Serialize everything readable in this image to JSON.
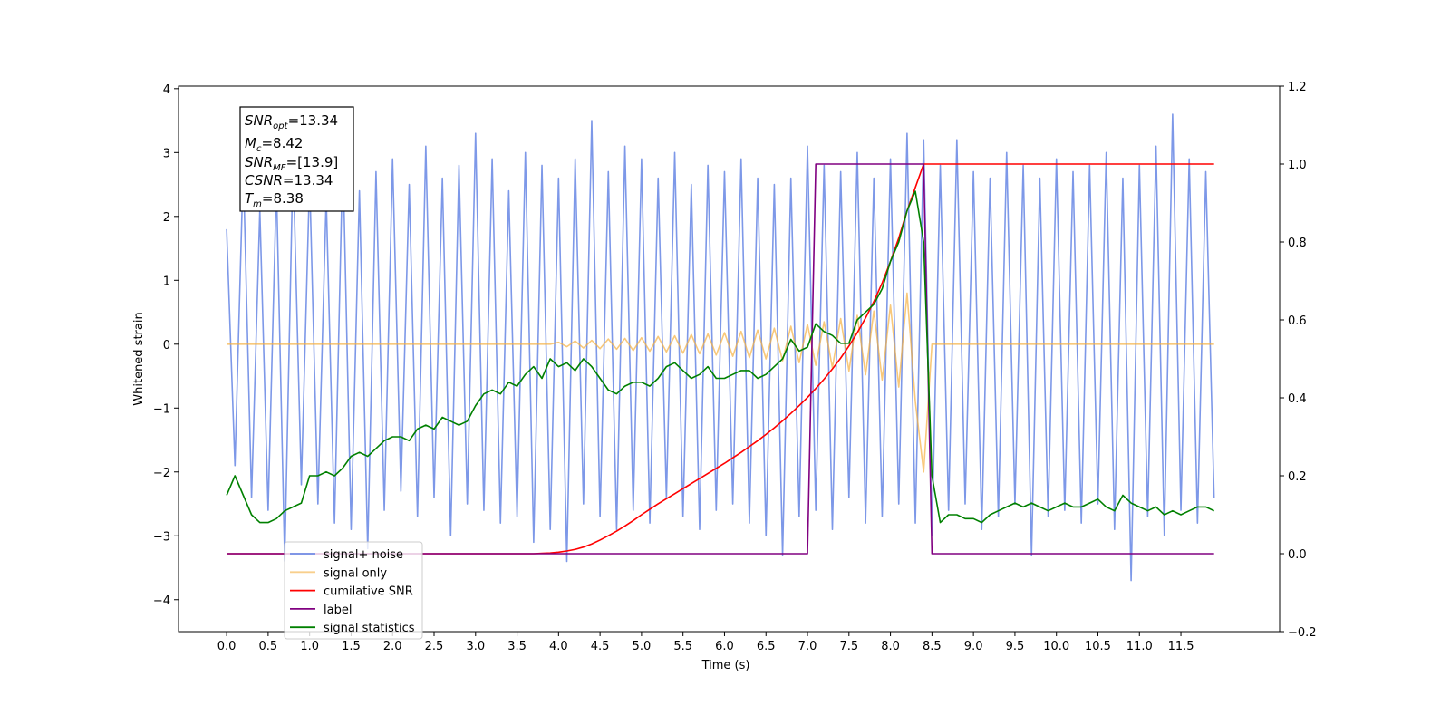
{
  "chart_data": {
    "type": "line",
    "xlabel": "Time (s)",
    "ylabel": "Whitened strain",
    "xlim": [
      -0.58,
      12.69
    ],
    "ylim": [
      -4.5,
      4.04
    ],
    "y2lim": [
      -0.2,
      1.2
    ],
    "xticks": [
      {
        "value": 0,
        "label": "0.0"
      },
      0.5,
      {
        "value": 1,
        "label": "1.0"
      },
      1.5,
      {
        "value": 2,
        "label": "2.0"
      },
      2.5,
      {
        "value": 3,
        "label": "3.0"
      },
      3.5,
      {
        "value": 4,
        "label": "4.0"
      },
      4.5,
      {
        "value": 5,
        "label": "5.0"
      },
      5.5,
      {
        "value": 6,
        "label": "6.0"
      },
      6.5,
      {
        "value": 7,
        "label": "7.0"
      },
      7.5,
      {
        "value": 8,
        "label": "8.0"
      },
      8.5,
      {
        "value": 9,
        "label": "9.0"
      },
      9.5,
      {
        "value": 10,
        "label": "10.0"
      },
      10.5,
      {
        "value": 11,
        "label": "11.0"
      },
      11.5
    ],
    "yticks": [
      {
        "value": -4,
        "label": "−4"
      },
      {
        "value": -3,
        "label": "−3"
      },
      {
        "value": -2,
        "label": "−2"
      },
      {
        "value": -1,
        "label": "−1"
      },
      0,
      1,
      2,
      3,
      4
    ],
    "y2ticks": [
      {
        "value": -0.2,
        "label": "−0.2"
      },
      {
        "value": 0,
        "label": "0.0"
      },
      0.2,
      0.4,
      0.6,
      0.8,
      {
        "value": 1,
        "label": "1.0"
      },
      1.2
    ],
    "legend": "lower left",
    "annotation": [
      {
        "name": "SNR",
        "sub": "opt",
        "text": "=13.34"
      },
      {
        "name": "M",
        "sub": "c",
        "text": "=8.42"
      },
      {
        "name": "SNR",
        "sub": "MF",
        "text": "=[13.9]"
      },
      {
        "name": "CSNR",
        "text": "=13.34"
      },
      {
        "name": "T",
        "sub": "m",
        "text": "=8.38"
      }
    ],
    "x": [
      0,
      0.1,
      0.2,
      0.3,
      0.4,
      0.5,
      0.6,
      0.7,
      0.8,
      0.9,
      1,
      1.1,
      1.2,
      1.3,
      1.4,
      1.5,
      1.6,
      1.7,
      1.8,
      1.9,
      2,
      2.1,
      2.2,
      2.3,
      2.4,
      2.5,
      2.6,
      2.7,
      2.8,
      2.9,
      3,
      3.1,
      3.2,
      3.3,
      3.4,
      3.5,
      3.6,
      3.7,
      3.8,
      3.9,
      4,
      4.1,
      4.2,
      4.3,
      4.4,
      4.5,
      4.6,
      4.7,
      4.8,
      4.9,
      5,
      5.1,
      5.2,
      5.3,
      5.4,
      5.5,
      5.6,
      5.7,
      5.8,
      5.9,
      6,
      6.1,
      6.2,
      6.3,
      6.4,
      6.5,
      6.6,
      6.7,
      6.8,
      6.9,
      7,
      7.1,
      7.2,
      7.3,
      7.4,
      7.5,
      7.6,
      7.7,
      7.8,
      7.9,
      8,
      8.1,
      8.2,
      8.3,
      8.4,
      8.5,
      8.6,
      8.7,
      8.8,
      8.9,
      9,
      9.1,
      9.2,
      9.3,
      9.4,
      9.5,
      9.6,
      9.7,
      9.8,
      9.9,
      10,
      10.1,
      10.2,
      10.3,
      10.4,
      10.5,
      10.6,
      10.7,
      10.8,
      10.9,
      11,
      11.1,
      11.2,
      11.3,
      11.4,
      11.5,
      11.6,
      11.7,
      11.8,
      11.9
    ],
    "series": [
      {
        "name": "signal+ noise",
        "color": "#6f8de6",
        "axis": "y",
        "values": [
          1.8,
          -1.9,
          2.8,
          -2.4,
          2.1,
          -2.6,
          2.5,
          -3.4,
          2.9,
          -2.2,
          2.6,
          -2.5,
          2.3,
          -2.8,
          3.0,
          -2.9,
          2.4,
          -3.2,
          2.7,
          -2.6,
          2.9,
          -2.3,
          2.5,
          -2.7,
          3.1,
          -2.4,
          2.6,
          -3.0,
          2.8,
          -2.5,
          3.3,
          -2.6,
          2.9,
          -2.8,
          2.4,
          -2.7,
          3.0,
          -3.1,
          2.8,
          -2.9,
          2.6,
          -3.4,
          2.9,
          -2.5,
          3.5,
          -2.7,
          2.7,
          -2.9,
          3.1,
          -2.6,
          2.9,
          -2.8,
          2.6,
          -2.4,
          3.0,
          -2.7,
          2.5,
          -2.9,
          2.8,
          -2.6,
          2.7,
          -2.5,
          2.9,
          -2.8,
          2.6,
          -3.0,
          2.5,
          -3.3,
          2.6,
          -2.7,
          3.1,
          -2.6,
          2.8,
          -2.9,
          2.7,
          -2.4,
          3.0,
          -2.8,
          2.6,
          -2.7,
          2.9,
          -2.5,
          3.3,
          -2.8,
          3.2,
          -3.0,
          2.8,
          -2.6,
          3.2,
          -2.5,
          2.7,
          -2.9,
          2.6,
          -2.7,
          3.0,
          -2.5,
          2.8,
          -3.3,
          2.6,
          -2.7,
          2.9,
          -2.6,
          2.7,
          -2.8,
          2.8,
          -2.5,
          3.0,
          -2.9,
          2.6,
          -3.7,
          2.8,
          -2.7,
          3.1,
          -3.0,
          3.6,
          -2.6,
          2.9,
          -2.8,
          2.7,
          -2.4
        ]
      },
      {
        "name": "signal only",
        "color": "#f5b041",
        "axis": "y",
        "values": [
          0,
          0,
          0,
          0,
          0,
          0,
          0,
          0,
          0,
          0,
          0,
          0,
          0,
          0,
          0,
          0,
          0,
          0,
          0,
          0,
          0,
          0,
          0,
          0,
          0,
          0,
          0,
          0,
          0,
          0,
          0,
          0,
          0,
          0,
          0,
          0,
          0,
          0,
          0,
          0,
          0.03,
          -0.04,
          0.05,
          -0.06,
          0.06,
          -0.07,
          0.08,
          -0.08,
          0.09,
          -0.1,
          0.1,
          -0.11,
          0.12,
          -0.12,
          0.13,
          -0.14,
          0.15,
          -0.15,
          0.16,
          -0.17,
          0.18,
          -0.19,
          0.2,
          -0.21,
          0.22,
          -0.23,
          0.25,
          -0.26,
          0.28,
          -0.29,
          0.31,
          -0.33,
          0.35,
          -0.37,
          0.4,
          -0.42,
          0.45,
          -0.48,
          0.52,
          -0.56,
          0.61,
          -0.67,
          0.8,
          -0.9,
          -2.0,
          0,
          0,
          0,
          0,
          0,
          0,
          0,
          0,
          0,
          0,
          0,
          0,
          0,
          0,
          0,
          0,
          0,
          0,
          0,
          0,
          0,
          0,
          0,
          0,
          0,
          0,
          0,
          0,
          0,
          0,
          0,
          0,
          0,
          0,
          0
        ]
      },
      {
        "name": "cumilative SNR",
        "color": "#ff0000",
        "axis": "y2",
        "values": [
          0,
          0,
          0,
          0,
          0,
          0,
          0,
          0,
          0,
          0,
          0,
          0,
          0,
          0,
          0,
          0,
          0,
          0,
          0,
          0,
          0,
          0,
          0,
          0,
          0,
          0,
          0,
          0,
          0,
          0,
          0,
          0,
          0,
          0,
          0,
          0,
          0,
          0,
          0.001,
          0.002,
          0.004,
          0.007,
          0.011,
          0.017,
          0.025,
          0.035,
          0.046,
          0.058,
          0.071,
          0.085,
          0.1,
          0.114,
          0.128,
          0.141,
          0.154,
          0.167,
          0.18,
          0.193,
          0.206,
          0.219,
          0.232,
          0.246,
          0.26,
          0.275,
          0.29,
          0.306,
          0.323,
          0.341,
          0.36,
          0.38,
          0.401,
          0.424,
          0.448,
          0.474,
          0.502,
          0.533,
          0.567,
          0.605,
          0.647,
          0.695,
          0.75,
          0.81,
          0.88,
          0.94,
          1,
          1,
          1,
          1,
          1,
          1,
          1,
          1,
          1,
          1,
          1,
          1,
          1,
          1,
          1,
          1,
          1,
          1,
          1,
          1,
          1,
          1,
          1,
          1,
          1,
          1,
          1,
          1,
          1,
          1,
          1,
          1,
          1,
          1,
          1,
          1
        ]
      },
      {
        "name": "label",
        "color": "#800080",
        "axis": "y2",
        "values": [
          0,
          0,
          0,
          0,
          0,
          0,
          0,
          0,
          0,
          0,
          0,
          0,
          0,
          0,
          0,
          0,
          0,
          0,
          0,
          0,
          0,
          0,
          0,
          0,
          0,
          0,
          0,
          0,
          0,
          0,
          0,
          0,
          0,
          0,
          0,
          0,
          0,
          0,
          0,
          0,
          0,
          0,
          0,
          0,
          0,
          0,
          0,
          0,
          0,
          0,
          0,
          0,
          0,
          0,
          0,
          0,
          0,
          0,
          0,
          0,
          0,
          0,
          0,
          0,
          0,
          0,
          0,
          0,
          0,
          0,
          0,
          1,
          1,
          1,
          1,
          1,
          1,
          1,
          1,
          1,
          1,
          1,
          1,
          1,
          1,
          0,
          0,
          0,
          0,
          0,
          0,
          0,
          0,
          0,
          0,
          0,
          0,
          0,
          0,
          0,
          0,
          0,
          0,
          0,
          0,
          0,
          0,
          0,
          0,
          0,
          0,
          0,
          0,
          0,
          0,
          0,
          0,
          0,
          0,
          0
        ]
      },
      {
        "name": "signal statistics",
        "color": "#008000",
        "axis": "y2",
        "values": [
          0.15,
          0.2,
          0.15,
          0.1,
          0.08,
          0.08,
          0.09,
          0.11,
          0.12,
          0.13,
          0.2,
          0.2,
          0.21,
          0.2,
          0.22,
          0.25,
          0.26,
          0.25,
          0.27,
          0.29,
          0.3,
          0.3,
          0.29,
          0.32,
          0.33,
          0.32,
          0.35,
          0.34,
          0.33,
          0.34,
          0.38,
          0.41,
          0.42,
          0.41,
          0.44,
          0.43,
          0.46,
          0.48,
          0.45,
          0.5,
          0.48,
          0.49,
          0.47,
          0.5,
          0.48,
          0.45,
          0.42,
          0.41,
          0.43,
          0.44,
          0.44,
          0.43,
          0.45,
          0.48,
          0.49,
          0.47,
          0.45,
          0.46,
          0.48,
          0.45,
          0.45,
          0.46,
          0.47,
          0.47,
          0.45,
          0.46,
          0.48,
          0.5,
          0.55,
          0.52,
          0.53,
          0.59,
          0.57,
          0.56,
          0.54,
          0.54,
          0.6,
          0.62,
          0.64,
          0.68,
          0.75,
          0.8,
          0.88,
          0.93,
          0.8,
          0.2,
          0.08,
          0.1,
          0.1,
          0.09,
          0.09,
          0.08,
          0.1,
          0.11,
          0.12,
          0.13,
          0.12,
          0.13,
          0.12,
          0.11,
          0.12,
          0.13,
          0.12,
          0.12,
          0.13,
          0.14,
          0.12,
          0.11,
          0.15,
          0.13,
          0.12,
          0.11,
          0.12,
          0.1,
          0.11,
          0.1,
          0.11,
          0.12,
          0.12,
          0.11
        ]
      }
    ]
  }
}
